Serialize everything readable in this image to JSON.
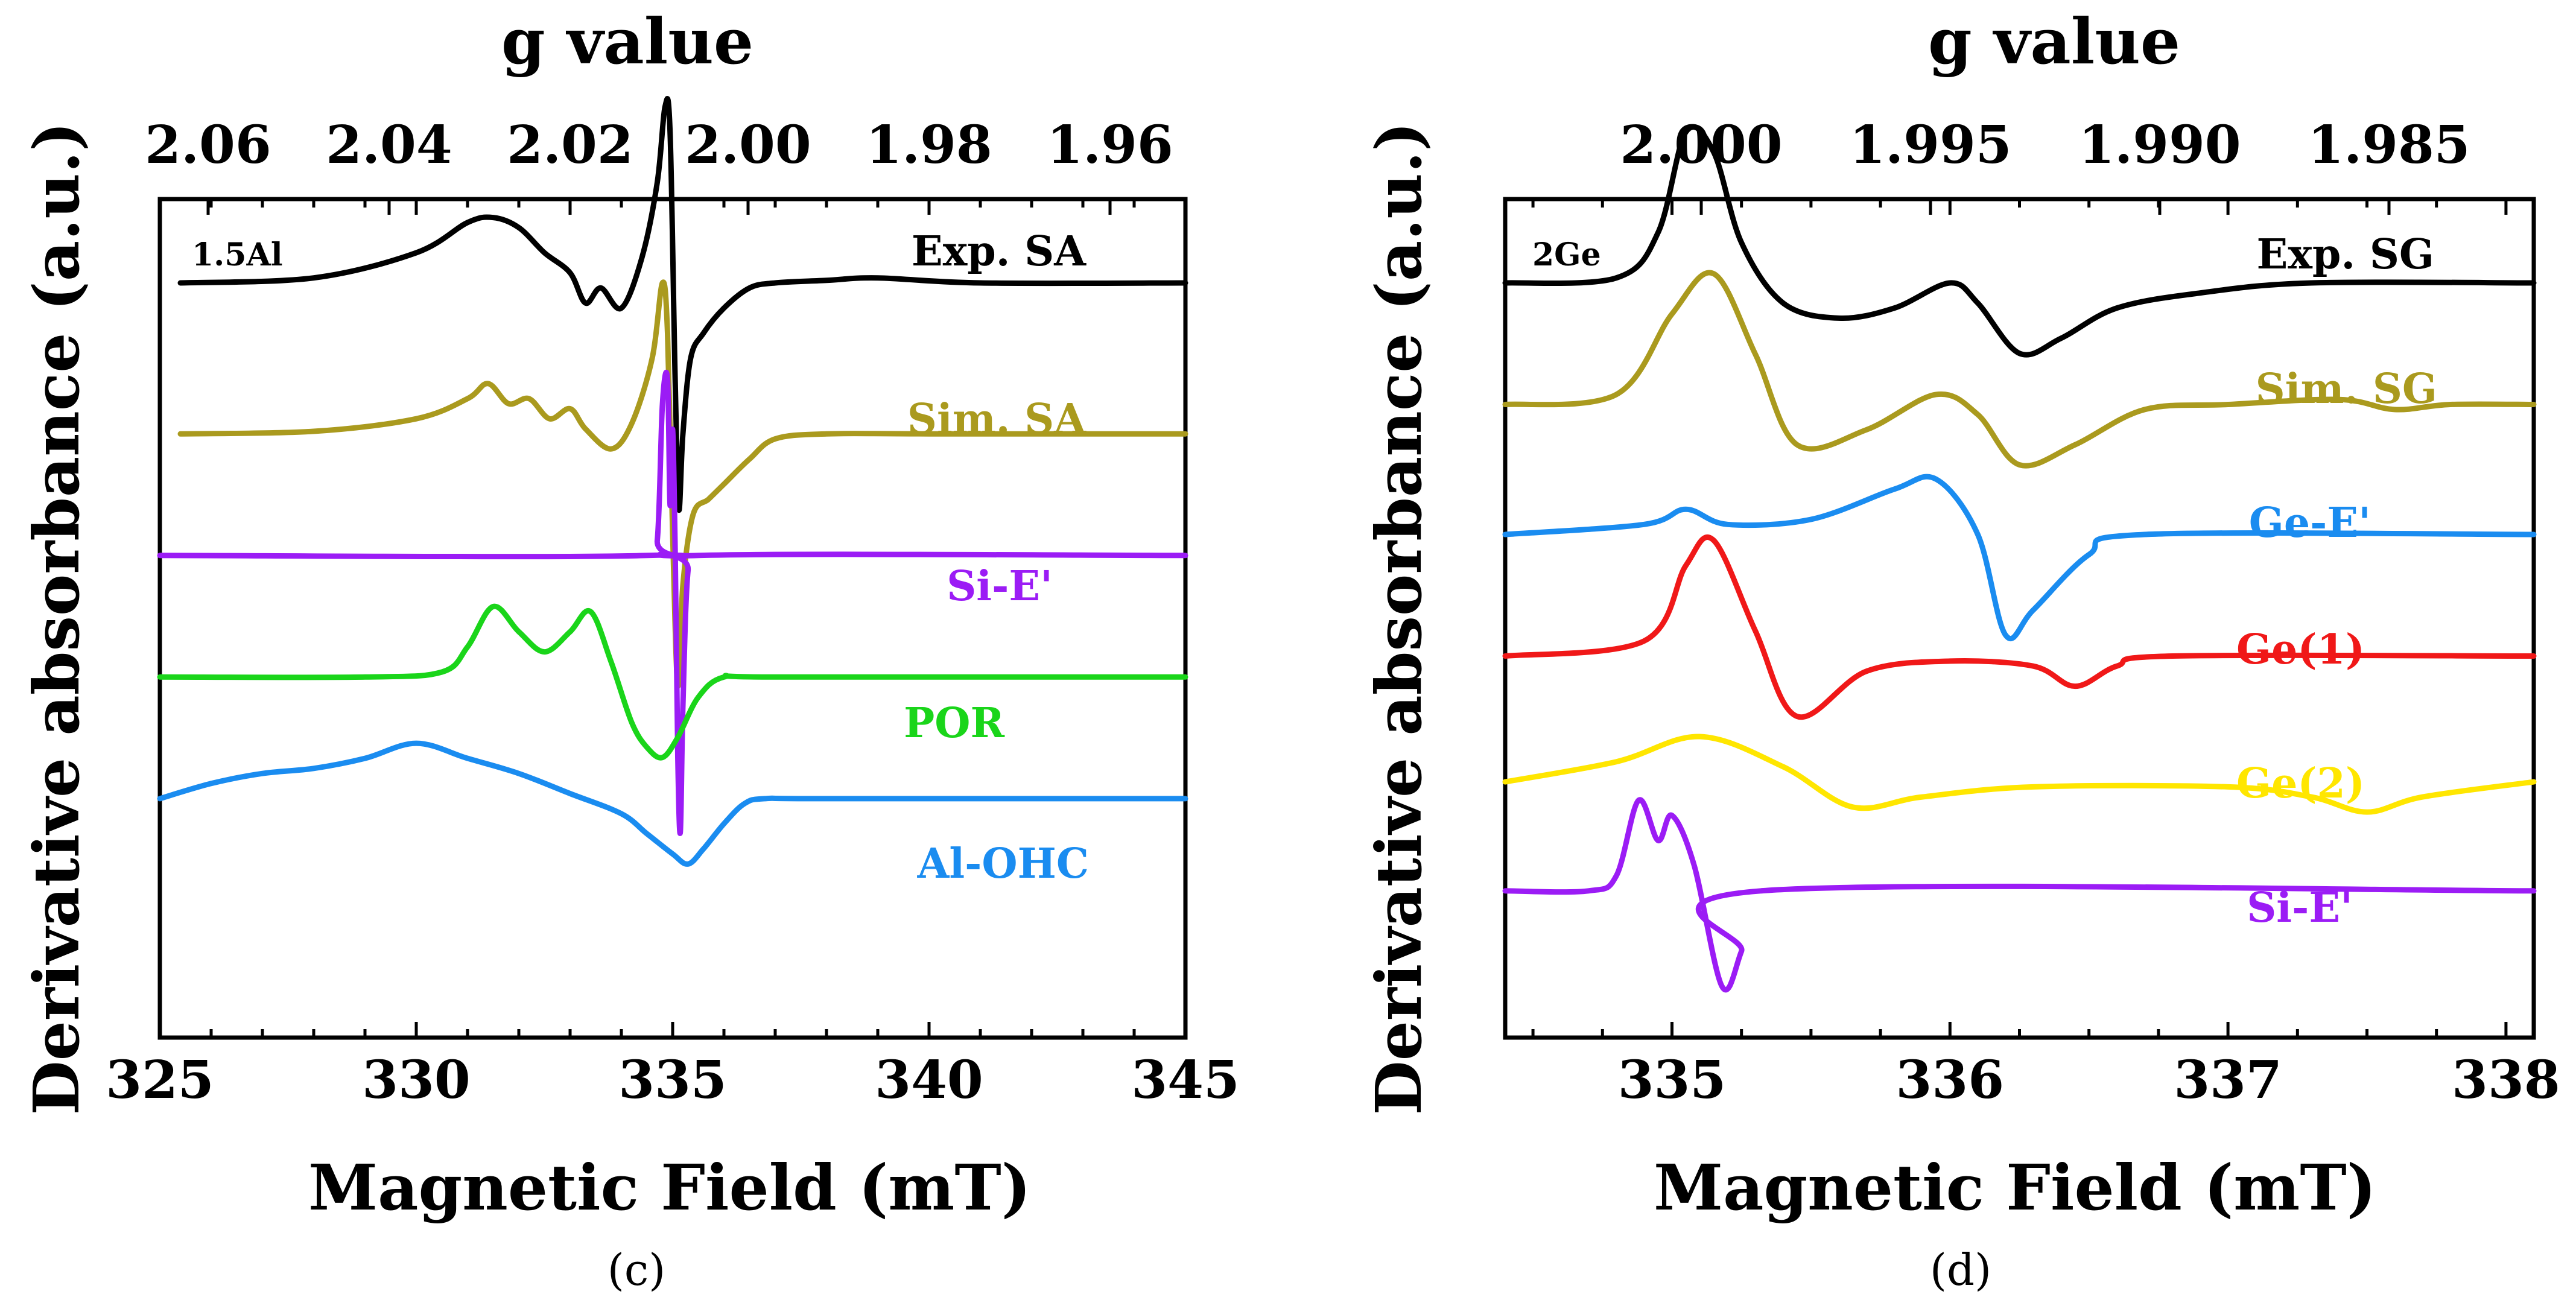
{
  "colors": {
    "black": "#000000",
    "olive": "#aa9a1e",
    "purple": "#9b1cf5",
    "green": "#1ad51a",
    "blue": "#1a8cf0",
    "red": "#f01818",
    "yellow": "#ffe600"
  },
  "chart_data": [
    {
      "type": "line",
      "panel": "(c)",
      "sample_label": "1.5Al",
      "xlabel": "Magnetic Field (mT)",
      "ylabel": "Derivative absorbance (a.u.)",
      "top_xlabel": "g value",
      "xlim": [
        325,
        345
      ],
      "xticks": [
        325,
        330,
        335,
        340,
        345
      ],
      "top_xticks": [
        "2.06",
        "2.04",
        "2.02",
        "2.00",
        "1.98",
        "1.96"
      ],
      "grid": false,
      "series": [
        {
          "name": "Exp. SA",
          "color_key": "black",
          "baseline": 0.9,
          "scale": 0.06,
          "x": [
            325.4,
            328,
            330,
            331,
            331.5,
            332,
            332.5,
            333,
            333.3,
            333.6,
            334,
            334.4,
            334.7,
            334.85,
            334.95,
            335.05,
            335.12,
            335.2,
            335.35,
            335.6,
            336,
            336.5,
            337,
            338,
            339,
            341,
            345
          ],
          "y": [
            0,
            0.1,
            0.6,
            1.2,
            1.3,
            1.1,
            0.6,
            0.2,
            -0.4,
            -0.1,
            -0.5,
            0.5,
            2.0,
            3.5,
            3.0,
            -2.0,
            -4.5,
            -3.0,
            -1.5,
            -1.0,
            -0.5,
            -0.1,
            0,
            0.05,
            0.1,
            0,
            0
          ]
        },
        {
          "name": "Sim. SA",
          "color_key": "olive",
          "baseline": 0.72,
          "scale": 0.06,
          "x": [
            325.4,
            328,
            330,
            331,
            331.4,
            331.8,
            332.2,
            332.6,
            333,
            333.3,
            333.8,
            334.2,
            334.6,
            334.8,
            334.9,
            335.0,
            335.1,
            335.2,
            335.4,
            335.7,
            336,
            336.5,
            337,
            338,
            340,
            345
          ],
          "y": [
            0,
            0.05,
            0.3,
            0.7,
            1.0,
            0.6,
            0.7,
            0.3,
            0.5,
            0.1,
            -0.3,
            0.2,
            1.5,
            3.0,
            2.0,
            -2.0,
            -5.0,
            -3.0,
            -1.6,
            -1.3,
            -1.0,
            -0.5,
            -0.1,
            0,
            0,
            0
          ]
        },
        {
          "name": "Si-E'",
          "color_key": "purple",
          "baseline": 0.575,
          "scale": 0.06,
          "x": [
            325,
            334.5,
            334.7,
            334.8,
            334.9,
            334.95,
            335.0,
            335.05,
            335.1,
            335.15,
            335.2,
            335.3,
            335.5,
            345
          ],
          "y": [
            0,
            0,
            0.3,
            3.0,
            3.5,
            1.0,
            2.5,
            0.0,
            -4.0,
            -5.5,
            -3.0,
            -0.3,
            0,
            0
          ]
        },
        {
          "name": "POR",
          "color_key": "green",
          "baseline": 0.43,
          "scale": 0.06,
          "x": [
            325,
            329,
            330.5,
            331,
            331.5,
            332,
            332.5,
            333,
            333.4,
            333.8,
            334.2,
            334.5,
            334.8,
            335.1,
            335.5,
            336,
            337,
            345
          ],
          "y": [
            0,
            0,
            0.1,
            0.6,
            1.4,
            0.9,
            0.5,
            0.9,
            1.3,
            0.3,
            -0.9,
            -1.4,
            -1.6,
            -1.2,
            -0.4,
            0,
            0,
            0
          ]
        },
        {
          "name": "Al-OHC",
          "color_key": "blue",
          "baseline": 0.285,
          "scale": 0.06,
          "x": [
            325,
            326,
            327,
            328,
            329,
            330,
            331,
            332,
            333,
            334,
            334.5,
            335,
            335.3,
            335.6,
            336,
            336.4,
            336.8,
            338,
            345
          ],
          "y": [
            0,
            0.3,
            0.5,
            0.6,
            0.8,
            1.1,
            0.8,
            0.5,
            0.1,
            -0.3,
            -0.7,
            -1.1,
            -1.3,
            -1.0,
            -0.5,
            -0.1,
            0,
            0,
            0
          ]
        }
      ]
    },
    {
      "type": "line",
      "panel": "(d)",
      "sample_label": "2Ge",
      "xlabel": "Magnetic Field (mT)",
      "ylabel": "Derivative absorbance (a.u.)",
      "top_xlabel": "g value",
      "xlim": [
        334.4,
        338.1
      ],
      "xticks": [
        335,
        336,
        337,
        338
      ],
      "top_xticks": [
        "2.000",
        "1.995",
        "1.990",
        "1.985"
      ],
      "grid": false,
      "series": [
        {
          "name": "Exp. SG",
          "color_key": "black",
          "baseline": 0.9,
          "scale": 0.06,
          "x": [
            334.4,
            334.8,
            334.95,
            335.05,
            335.15,
            335.25,
            335.4,
            335.6,
            335.8,
            336.0,
            336.1,
            336.25,
            336.4,
            336.6,
            336.9,
            337.3,
            338.1
          ],
          "y": [
            0,
            0.1,
            1.0,
            3.0,
            2.6,
            0.8,
            -0.4,
            -0.7,
            -0.5,
            0.0,
            -0.4,
            -1.4,
            -1.1,
            -0.5,
            -0.2,
            0,
            0
          ]
        },
        {
          "name": "Sim. SG",
          "color_key": "olive",
          "baseline": 0.755,
          "scale": 0.06,
          "x": [
            334.4,
            334.8,
            335.0,
            335.15,
            335.3,
            335.45,
            335.7,
            335.95,
            336.1,
            336.25,
            336.45,
            336.7,
            337.0,
            337.4,
            337.6,
            337.8,
            338.1
          ],
          "y": [
            0,
            0.2,
            1.8,
            2.6,
            1.0,
            -0.8,
            -0.5,
            0.2,
            -0.2,
            -1.2,
            -0.8,
            -0.1,
            0.0,
            0.1,
            -0.1,
            0,
            0
          ]
        },
        {
          "name": "Ge-E'",
          "color_key": "blue",
          "baseline": 0.6,
          "scale": 0.06,
          "x": [
            334.4,
            334.9,
            335.05,
            335.2,
            335.5,
            335.8,
            335.95,
            336.1,
            336.2,
            336.3,
            336.5,
            336.7,
            338.1
          ],
          "y": [
            0,
            0.2,
            0.5,
            0.2,
            0.3,
            0.9,
            1.1,
            0.0,
            -2.0,
            -1.5,
            -0.4,
            0,
            0
          ]
        },
        {
          "name": "Ge(1)",
          "color_key": "red",
          "baseline": 0.455,
          "scale": 0.06,
          "x": [
            334.4,
            334.9,
            335.05,
            335.15,
            335.3,
            335.45,
            335.7,
            336.0,
            336.3,
            336.45,
            336.6,
            336.8,
            338.1
          ],
          "y": [
            0,
            0.3,
            1.8,
            2.3,
            0.5,
            -1.2,
            -0.3,
            -0.1,
            -0.2,
            -0.6,
            -0.2,
            0,
            0
          ]
        },
        {
          "name": "Ge(2)",
          "color_key": "yellow",
          "baseline": 0.305,
          "scale": 0.06,
          "x": [
            334.4,
            334.8,
            335.1,
            335.4,
            335.65,
            335.9,
            336.3,
            337.0,
            337.3,
            337.5,
            337.7,
            338.1
          ],
          "y": [
            0,
            0.4,
            0.9,
            0.3,
            -0.5,
            -0.3,
            -0.1,
            -0.1,
            -0.3,
            -0.6,
            -0.3,
            0
          ]
        },
        {
          "name": "Si-E'",
          "color_key": "purple",
          "baseline": 0.175,
          "scale": 0.06,
          "x": [
            334.4,
            334.7,
            334.8,
            334.88,
            334.95,
            335.0,
            335.08,
            335.18,
            335.25,
            335.32,
            338.1
          ],
          "y": [
            0,
            0,
            0.3,
            1.8,
            1.0,
            1.5,
            0.5,
            -1.9,
            -1.2,
            0,
            0
          ]
        }
      ]
    }
  ]
}
